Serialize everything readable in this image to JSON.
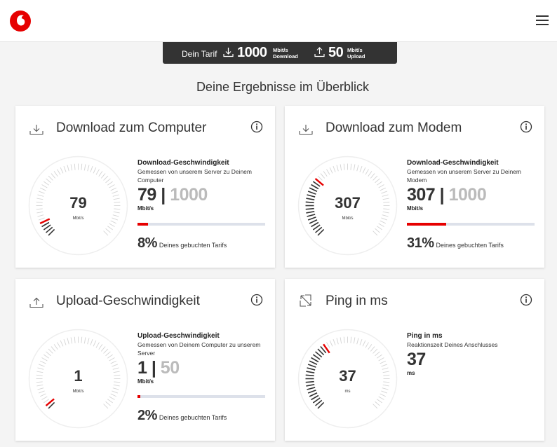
{
  "header": {
    "logo_icon": "vodafone-logo-icon",
    "menu_icon": "hamburger-menu-icon"
  },
  "tarif": {
    "label": "Dein Tarif",
    "download_value": "1000",
    "download_unit": "Mbit/s",
    "download_label": "Download",
    "upload_value": "50",
    "upload_unit": "Mbit/s",
    "upload_label": "Upload"
  },
  "page_title": "Deine Ergebnisse im Überblick",
  "accent_color": "#e60000",
  "cards": [
    {
      "title": "Download zum Computer",
      "icon": "download-icon",
      "gauge_value": "79",
      "gauge_unit": "Mbit/s",
      "gauge_fraction": 0.079,
      "result_title": "Download-Geschwindigkeit",
      "result_desc": "Gemessen von unserem Server zu Deinem Computer",
      "result_value": "79",
      "result_max": "1000",
      "result_unit": "Mbit/s",
      "percent": "8%",
      "percent_fraction": 0.08,
      "percent_text": "Deines gebuchten Tarifs"
    },
    {
      "title": "Download zum Modem",
      "icon": "download-icon",
      "gauge_value": "307",
      "gauge_unit": "Mbit/s",
      "gauge_fraction": 0.307,
      "result_title": "Download-Geschwindigkeit",
      "result_desc": "Gemessen von unserem Server zu Deinem Modem",
      "result_value": "307",
      "result_max": "1000",
      "result_unit": "Mbit/s",
      "percent": "31%",
      "percent_fraction": 0.31,
      "percent_text": "Deines gebuchten Tarifs"
    },
    {
      "title": "Upload-Geschwindigkeit",
      "icon": "upload-icon",
      "gauge_value": "1",
      "gauge_unit": "Mbit/s",
      "gauge_fraction": 0.02,
      "result_title": "Upload-Geschwindigkeit",
      "result_desc": "Gemessen von Deinem Computer zu unserem Server",
      "result_value": "1",
      "result_max": "50",
      "result_unit": "Mbit/s",
      "percent": "2%",
      "percent_fraction": 0.02,
      "percent_text": "Deines gebuchten Tarifs"
    },
    {
      "title": "Ping in ms",
      "icon": "ping-arrows-icon",
      "gauge_value": "37",
      "gauge_unit": "ms",
      "gauge_fraction": 0.37,
      "result_title": "Ping in ms",
      "result_desc": "Reaktionszeit Deines Anschlusses",
      "result_value": "37",
      "result_unit": "ms"
    }
  ]
}
